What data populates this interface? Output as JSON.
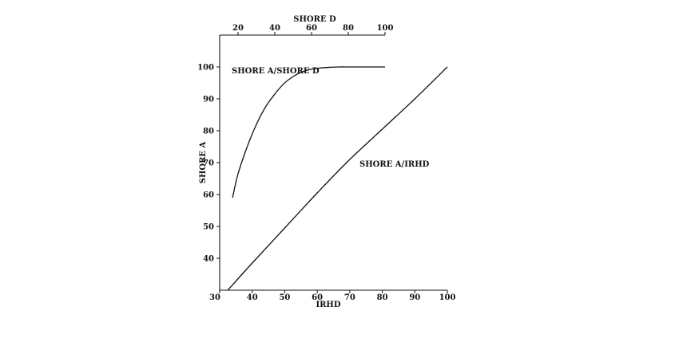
{
  "chart_data": {
    "type": "line",
    "xlabel": "IRHD",
    "ylabel": "SHORE A",
    "x2label": "SHORE D",
    "xlim": [
      30,
      100
    ],
    "ylim": [
      30,
      110
    ],
    "x2lim": [
      10,
      100
    ],
    "xticks": [
      "30",
      "40",
      "50",
      "60",
      "70",
      "80",
      "90",
      "100"
    ],
    "yticks": [
      "40",
      "50",
      "60",
      "70",
      "80",
      "90",
      "100"
    ],
    "x2ticks": [
      "20",
      "40",
      "60",
      "80",
      "100"
    ],
    "grid": false,
    "series": [
      {
        "name": "SHORE A/SHORE D",
        "axis": "shore-d",
        "x": [
          17,
          20,
          25,
          30,
          35,
          40,
          45,
          50,
          55,
          60,
          65,
          70,
          75,
          80,
          90,
          100
        ],
        "y": [
          59,
          66.5,
          75,
          82,
          87.5,
          91.5,
          94.8,
          97,
          98.5,
          99.3,
          99.7,
          99.9,
          100,
          100,
          100,
          100
        ]
      },
      {
        "name": "SHORE A/IRHD",
        "axis": "irhd",
        "x": [
          32.5,
          40,
          50,
          60,
          70,
          80,
          90,
          100
        ],
        "y": [
          30,
          38.5,
          49.5,
          60.5,
          71,
          80.5,
          90,
          100
        ]
      }
    ],
    "annotations": [
      "SHORE A/SHORE D",
      "SHORE A/IRHD"
    ]
  }
}
